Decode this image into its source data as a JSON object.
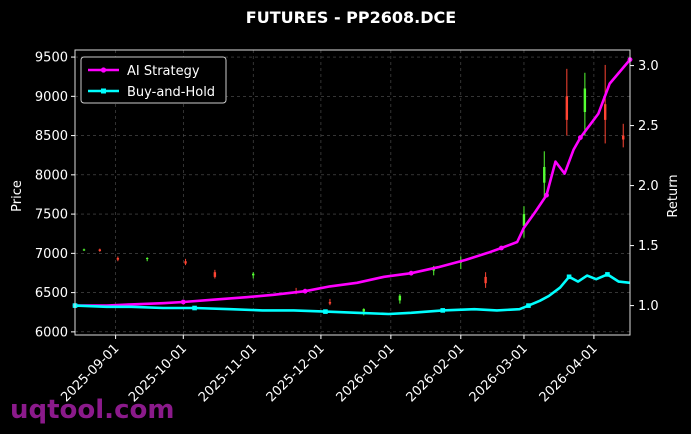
{
  "chart_data": {
    "type": "line",
    "title": "FUTURES - PP2608.DCE",
    "ylabel_left": "Price",
    "ylabel_right": "Return",
    "ylim_left": [
      5960,
      9590
    ],
    "ylim_right": [
      0.755,
      3.13
    ],
    "xlim": [
      "2025-08-14",
      "2026-04-17"
    ],
    "grid": true,
    "legend_position": "upper-left",
    "x_ticks": [
      "2025-09-01",
      "2025-10-01",
      "2025-11-01",
      "2025-12-01",
      "2026-01-01",
      "2026-02-01",
      "2026-03-01",
      "2026-04-01"
    ],
    "y_ticks_left": [
      6000,
      6500,
      7000,
      7500,
      8000,
      8500,
      9000,
      9500
    ],
    "y_ticks_right": [
      1.0,
      1.5,
      2.0,
      2.5,
      3.0
    ],
    "y_tick_labels_right": [
      "1.0",
      "1.5",
      "2.0",
      "2.5",
      "3.0"
    ],
    "series": [
      {
        "name": "AI Strategy",
        "axis": "right",
        "color": "#ff00ff",
        "marker": "circle",
        "points": [
          [
            "2025-08-14",
            1.0
          ],
          [
            "2025-08-28",
            1.0
          ],
          [
            "2025-09-08",
            1.01
          ],
          [
            "2025-09-22",
            1.02
          ],
          [
            "2025-10-01",
            1.03
          ],
          [
            "2025-10-15",
            1.05
          ],
          [
            "2025-10-29",
            1.07
          ],
          [
            "2025-11-10",
            1.09
          ],
          [
            "2025-11-24",
            1.12
          ],
          [
            "2025-12-05",
            1.16
          ],
          [
            "2025-12-17",
            1.19
          ],
          [
            "2025-12-29",
            1.24
          ],
          [
            "2026-01-10",
            1.27
          ],
          [
            "2026-01-22",
            1.32
          ],
          [
            "2026-02-03",
            1.38
          ],
          [
            "2026-02-13",
            1.44
          ],
          [
            "2026-02-19",
            1.48
          ],
          [
            "2026-02-26",
            1.53
          ],
          [
            "2026-03-01",
            1.65
          ],
          [
            "2026-03-06",
            1.78
          ],
          [
            "2026-03-11",
            1.92
          ],
          [
            "2026-03-15",
            2.2
          ],
          [
            "2026-03-19",
            2.1
          ],
          [
            "2026-03-23",
            2.3
          ],
          [
            "2026-03-26",
            2.4
          ],
          [
            "2026-03-30",
            2.5
          ],
          [
            "2026-04-03",
            2.6
          ],
          [
            "2026-04-08",
            2.85
          ],
          [
            "2026-04-17",
            3.05
          ]
        ]
      },
      {
        "name": "Buy-and-Hold",
        "axis": "right",
        "color": "#00ffff",
        "marker": "square",
        "points": [
          [
            "2025-08-14",
            1.0
          ],
          [
            "2025-08-28",
            0.99
          ],
          [
            "2025-09-08",
            0.99
          ],
          [
            "2025-09-22",
            0.98
          ],
          [
            "2025-10-06",
            0.98
          ],
          [
            "2025-10-22",
            0.97
          ],
          [
            "2025-11-05",
            0.96
          ],
          [
            "2025-11-19",
            0.96
          ],
          [
            "2025-12-03",
            0.95
          ],
          [
            "2025-12-17",
            0.94
          ],
          [
            "2025-12-31",
            0.93
          ],
          [
            "2026-01-10",
            0.94
          ],
          [
            "2026-01-24",
            0.96
          ],
          [
            "2026-02-07",
            0.97
          ],
          [
            "2026-02-17",
            0.96
          ],
          [
            "2026-02-27",
            0.97
          ],
          [
            "2026-03-03",
            1.0
          ],
          [
            "2026-03-08",
            1.04
          ],
          [
            "2026-03-12",
            1.08
          ],
          [
            "2026-03-17",
            1.15
          ],
          [
            "2026-03-21",
            1.24
          ],
          [
            "2026-03-25",
            1.2
          ],
          [
            "2026-03-29",
            1.25
          ],
          [
            "2026-04-02",
            1.22
          ],
          [
            "2026-04-07",
            1.26
          ],
          [
            "2026-04-12",
            1.2
          ],
          [
            "2026-04-17",
            1.19
          ]
        ]
      }
    ],
    "candles": {
      "axis": "left",
      "up_color": "#55ff33",
      "down_color": "#ff4433",
      "ohlc_samples": [
        [
          "2025-08-18",
          7040,
          7060,
          7030,
          7050
        ],
        [
          "2025-08-25",
          7050,
          7060,
          7020,
          7030
        ],
        [
          "2025-09-02",
          6940,
          6960,
          6900,
          6920
        ],
        [
          "2025-09-15",
          6930,
          6950,
          6900,
          6940
        ],
        [
          "2025-10-02",
          6900,
          6930,
          6850,
          6870
        ],
        [
          "2025-10-15",
          6760,
          6790,
          6680,
          6700
        ],
        [
          "2025-11-01",
          6720,
          6760,
          6680,
          6740
        ],
        [
          "2025-11-20",
          6520,
          6560,
          6480,
          6500
        ],
        [
          "2025-12-05",
          6380,
          6420,
          6340,
          6360
        ],
        [
          "2025-12-20",
          6260,
          6300,
          6210,
          6290
        ],
        [
          "2026-01-05",
          6400,
          6480,
          6360,
          6460
        ],
        [
          "2026-01-20",
          6780,
          6840,
          6720,
          6800
        ],
        [
          "2026-02-01",
          6880,
          6960,
          6800,
          6900
        ],
        [
          "2026-02-12",
          6700,
          6760,
          6560,
          6620
        ],
        [
          "2026-03-01",
          7350,
          7600,
          7200,
          7500
        ],
        [
          "2026-03-10",
          7900,
          8300,
          7700,
          8100
        ],
        [
          "2026-03-20",
          9000,
          9350,
          8500,
          8700
        ],
        [
          "2026-03-28",
          8800,
          9300,
          8500,
          9100
        ],
        [
          "2026-04-06",
          8900,
          9400,
          8400,
          8700
        ],
        [
          "2026-04-14",
          8500,
          8650,
          8350,
          8450
        ]
      ]
    }
  },
  "watermark": "uqtool.com"
}
